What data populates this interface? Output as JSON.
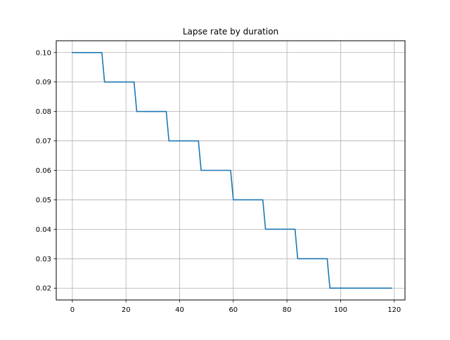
{
  "chart_data": {
    "type": "line",
    "title": "Lapse rate by duration",
    "xlabel": "",
    "ylabel": "",
    "xlim": [
      -6,
      124
    ],
    "ylim": [
      0.016,
      0.104
    ],
    "xticks": [
      0,
      20,
      40,
      60,
      80,
      100,
      120
    ],
    "xtick_labels": [
      "0",
      "20",
      "40",
      "60",
      "80",
      "100",
      "120"
    ],
    "yticks": [
      0.02,
      0.03,
      0.04,
      0.05,
      0.06,
      0.07,
      0.08,
      0.09,
      0.1
    ],
    "ytick_labels": [
      "0.02",
      "0.03",
      "0.04",
      "0.05",
      "0.06",
      "0.07",
      "0.08",
      "0.09",
      "0.10"
    ],
    "grid": true,
    "series": [
      {
        "color": "#1f77b4",
        "x": [
          0,
          11,
          12,
          23,
          24,
          35,
          36,
          47,
          48,
          59,
          60,
          71,
          72,
          83,
          84,
          95,
          96,
          119
        ],
        "y": [
          0.1,
          0.1,
          0.09,
          0.09,
          0.08,
          0.08,
          0.07,
          0.07,
          0.06,
          0.06,
          0.05,
          0.05,
          0.04,
          0.04,
          0.03,
          0.03,
          0.02,
          0.02
        ]
      }
    ]
  }
}
